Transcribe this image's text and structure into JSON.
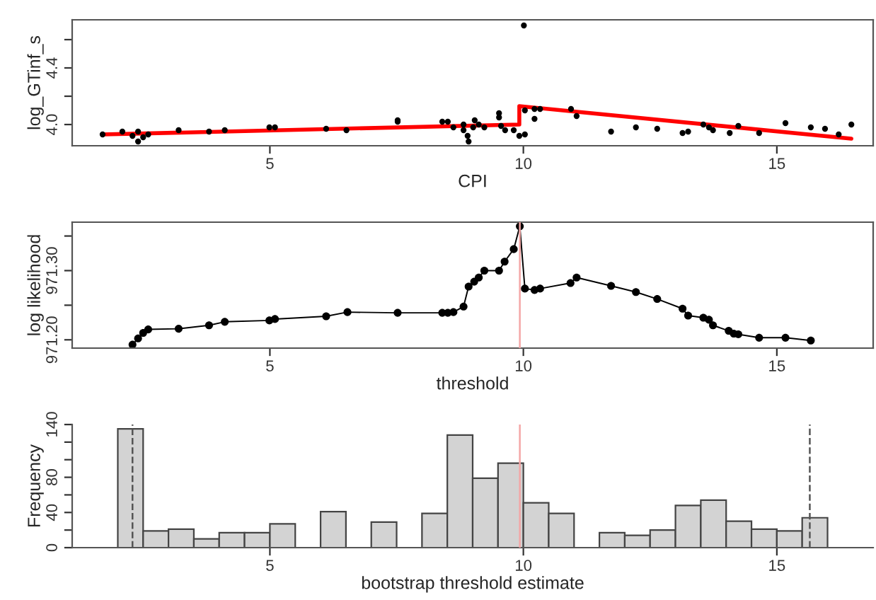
{
  "chart_data": [
    {
      "type": "scatter",
      "xlabel": "CPI",
      "ylabel": "log_GTinf_s",
      "xlim": [
        1.1,
        16.9
      ],
      "ylim": [
        3.85,
        4.74
      ],
      "xticks": [
        5,
        10,
        15
      ],
      "yticks": [
        {
          "value": 4.0,
          "label": "4.0"
        },
        {
          "value": 4.2,
          "label": null
        },
        {
          "value": 4.4,
          "label": "4.4"
        },
        {
          "value": 4.6,
          "label": null
        }
      ],
      "grid": false,
      "legend": false,
      "series": [
        {
          "type": "scatter",
          "color": "#000000",
          "marker": "circle",
          "x": [
            1.7,
            2.09,
            2.29,
            2.4,
            2.4,
            2.5,
            2.6,
            3.2,
            3.8,
            4.11,
            4.99,
            5.1,
            6.11,
            6.51,
            7.52,
            7.52,
            8.4,
            8.51,
            8.62,
            8.82,
            8.82,
            8.9,
            8.92,
            9.01,
            9.04,
            9.12,
            9.23,
            9.52,
            9.52,
            9.56,
            9.64,
            9.81,
            9.92,
            10.01,
            10.03,
            10.03,
            10.22,
            10.22,
            10.33,
            10.94,
            11.05,
            11.73,
            12.22,
            12.64,
            13.14,
            13.25,
            13.55,
            13.66,
            13.74,
            14.07,
            14.24,
            14.65,
            15.17,
            15.67,
            15.95,
            16.22,
            16.47
          ],
          "values": [
            3.93,
            3.95,
            3.92,
            3.95,
            3.88,
            3.91,
            3.93,
            3.96,
            3.95,
            3.96,
            3.98,
            3.98,
            3.97,
            3.96,
            4.02,
            4.03,
            4.02,
            4.02,
            3.98,
            4.0,
            3.96,
            3.92,
            3.88,
            3.98,
            4.03,
            4.0,
            3.98,
            4.08,
            4.05,
            3.99,
            3.96,
            3.96,
            3.92,
            4.7,
            3.93,
            4.1,
            4.04,
            4.11,
            4.11,
            4.11,
            4.06,
            3.95,
            3.98,
            3.97,
            3.94,
            3.95,
            4.0,
            3.98,
            3.96,
            3.94,
            3.99,
            3.94,
            4.01,
            3.98,
            3.97,
            3.93,
            4.0
          ]
        },
        {
          "type": "line",
          "color": "#ff0000",
          "marker": "none",
          "line_style": "solid",
          "x": [
            1.7,
            9.92,
            9.92,
            16.47
          ],
          "values": [
            3.93,
            4.0,
            4.13,
            3.9
          ]
        }
      ]
    },
    {
      "type": "line",
      "xlabel": "threshold",
      "ylabel": "log likelihood",
      "xlim": [
        1.1,
        16.9
      ],
      "ylim": [
        971.188,
        971.37
      ],
      "xticks": [
        5,
        10,
        15
      ],
      "yticks": [
        {
          "value": 971.2,
          "label": "971.20"
        },
        {
          "value": 971.25,
          "label": null
        },
        {
          "value": 971.3,
          "label": "971.30"
        },
        {
          "value": 971.35,
          "label": null
        }
      ],
      "grid": false,
      "legend": false,
      "ref_lines": [
        {
          "axis": "x",
          "value": 9.93,
          "color": "#f4a6a6",
          "line_style": "solid"
        }
      ],
      "series": [
        {
          "type": "line",
          "color": "#000000",
          "marker": "circle",
          "line_style": "solid",
          "x": [
            2.29,
            2.4,
            2.5,
            2.6,
            3.2,
            3.8,
            4.11,
            4.99,
            5.1,
            6.11,
            6.53,
            7.52,
            8.4,
            8.51,
            8.62,
            8.82,
            8.92,
            9.03,
            9.12,
            9.23,
            9.52,
            9.63,
            9.81,
            9.93,
            10.03,
            10.22,
            10.33,
            10.93,
            11.05,
            11.73,
            12.22,
            12.64,
            13.14,
            13.25,
            13.55,
            13.66,
            13.74,
            14.05,
            14.15,
            14.24,
            14.65,
            15.17,
            15.67
          ],
          "values": [
            971.193,
            971.202,
            971.21,
            971.215,
            971.216,
            971.221,
            971.226,
            971.228,
            971.23,
            971.234,
            971.24,
            971.239,
            971.239,
            971.239,
            971.24,
            971.248,
            971.277,
            971.284,
            971.29,
            971.3,
            971.3,
            971.313,
            971.331,
            971.364,
            971.274,
            971.272,
            971.274,
            971.282,
            971.29,
            971.278,
            971.269,
            971.259,
            971.245,
            971.235,
            971.232,
            971.229,
            971.221,
            971.213,
            971.209,
            971.208,
            971.203,
            971.203,
            971.199
          ]
        }
      ]
    },
    {
      "type": "histogram",
      "xlabel": "bootstrap threshold estimate",
      "ylabel": "Frequency",
      "xlim": [
        1.1,
        16.9
      ],
      "ylim": [
        0,
        140
      ],
      "xticks": [
        5,
        10,
        15
      ],
      "yticks": [
        0,
        {
          "value": 20,
          "label": null
        },
        40,
        {
          "value": 60,
          "label": null
        },
        80,
        {
          "value": 100,
          "label": null
        },
        {
          "value": 120,
          "label": null
        },
        140
      ],
      "grid": false,
      "legend": false,
      "color": "#d3d3d3",
      "bins": [
        2.0,
        2.5,
        3.0,
        3.5,
        4.0,
        4.5,
        5.0,
        5.5,
        6.0,
        6.5,
        7.0,
        7.5,
        8.0,
        8.5,
        9.0,
        9.5,
        10.0,
        10.5,
        11.0,
        11.5,
        12.0,
        12.5,
        13.0,
        13.5,
        14.0,
        14.5,
        15.0,
        15.5,
        16.0
      ],
      "values": [
        135,
        19,
        21,
        10,
        17,
        17,
        27,
        0,
        41,
        0,
        29,
        0,
        39,
        128,
        79,
        96,
        51,
        39,
        0,
        17,
        14,
        20,
        48,
        54,
        30,
        21,
        19,
        34
      ],
      "ref_lines": [
        {
          "axis": "x",
          "value": 2.29,
          "color": "#555555",
          "line_style": "dashed"
        },
        {
          "axis": "x",
          "value": 9.93,
          "color": "#f4a6a6",
          "line_style": "solid"
        },
        {
          "axis": "x",
          "value": 15.65,
          "color": "#555555",
          "line_style": "dashed"
        }
      ]
    }
  ]
}
